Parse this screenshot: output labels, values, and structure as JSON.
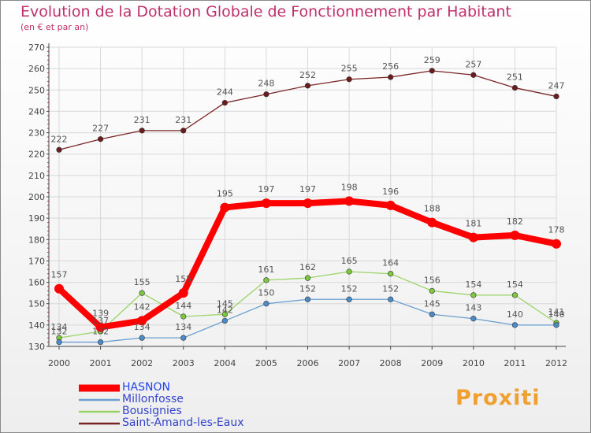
{
  "title": "Evolution de la Dotation Globale de Fonctionnement par Habitant",
  "subtitle": "(en € et par an)",
  "brand": "Proxiti",
  "chart_data": {
    "type": "line",
    "title": "Evolution de la Dotation Globale de Fonctionnement par Habitant",
    "subtitle": "(en € et par an)",
    "xlabel": "",
    "ylabel": "",
    "x": [
      "2000",
      "2001",
      "2002",
      "2003",
      "2004",
      "2005",
      "2006",
      "2007",
      "2008",
      "2009",
      "2010",
      "2011",
      "2012"
    ],
    "ylim": [
      130,
      270
    ],
    "yticks": [
      "130",
      "140",
      "150",
      "160",
      "170",
      "180",
      "190",
      "200",
      "210",
      "220",
      "230",
      "240",
      "250",
      "260",
      "270"
    ],
    "grid": true,
    "legend_position": "bottom-left",
    "series": [
      {
        "name": "Saint-Amand-les-Eaux",
        "color": "#7a2525",
        "point_color": "#6b1c1c",
        "emphasis": false,
        "values": [
          222,
          227,
          231,
          231,
          244,
          248,
          252,
          255,
          256,
          259,
          257,
          251,
          247
        ]
      },
      {
        "name": "Bousignies",
        "color": "#99d466",
        "point_color": "#7cc93d",
        "emphasis": false,
        "values": [
          134,
          137,
          155,
          144,
          145,
          161,
          162,
          165,
          164,
          156,
          154,
          154,
          141
        ]
      },
      {
        "name": "Millonfosse",
        "color": "#6a9fcf",
        "point_color": "#4a8bc8",
        "emphasis": false,
        "values": [
          132,
          132,
          134,
          134,
          142,
          150,
          152,
          152,
          152,
          145,
          143,
          140,
          140
        ]
      },
      {
        "name": "HASNON",
        "color": "#ff0000",
        "point_color": "#ff0000",
        "emphasis": true,
        "values": [
          157,
          139,
          142,
          155,
          195,
          197,
          197,
          198,
          196,
          188,
          181,
          182,
          178
        ]
      }
    ],
    "legend": [
      "HASNON",
      "Millonfosse",
      "Bousignies",
      "Saint-Amand-les-Eaux"
    ]
  }
}
